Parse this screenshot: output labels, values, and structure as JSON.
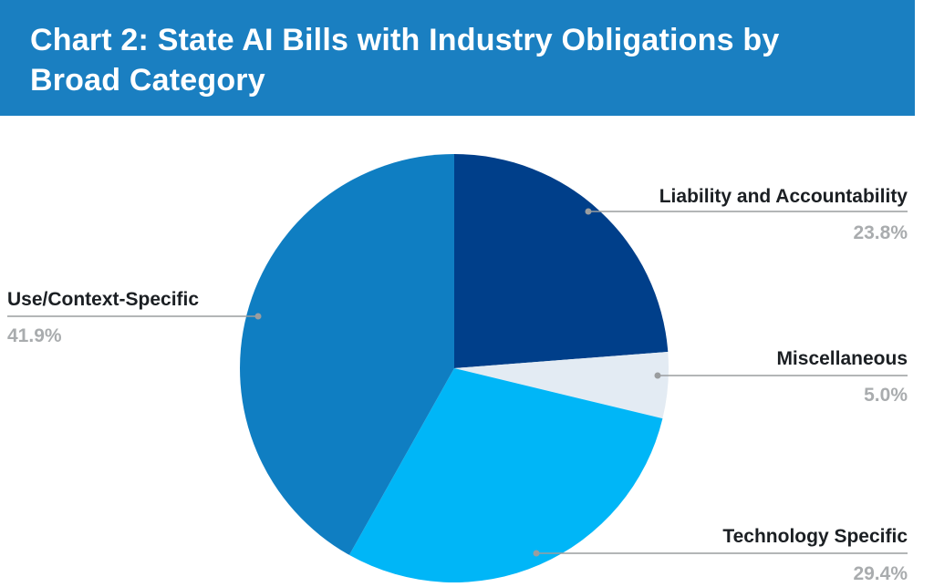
{
  "chart_data": {
    "type": "pie",
    "title": "Chart 2: State AI Bills with Industry Obligations by Broad Category",
    "start_angle_deg": 0,
    "direction": "clockwise",
    "slices": [
      {
        "label": "Liability and Accountability",
        "value": 23.8,
        "value_label": "23.8%",
        "color": "#003f8a"
      },
      {
        "label": "Miscellaneous",
        "value": 5.0,
        "value_label": "5.0%",
        "color": "#e3ebf3"
      },
      {
        "label": "Technology Specific",
        "value": 29.4,
        "value_label": "29.4%",
        "color": "#00b6f7"
      },
      {
        "label": "Use/Context-Specific",
        "value": 41.9,
        "value_label": "41.9%",
        "color": "#0f7ec2"
      }
    ],
    "colors": {
      "header": "#1a7fc1",
      "leader_line": "#9a9d9f",
      "label_text": "#1b1f23",
      "value_text": "#a9acae"
    }
  }
}
